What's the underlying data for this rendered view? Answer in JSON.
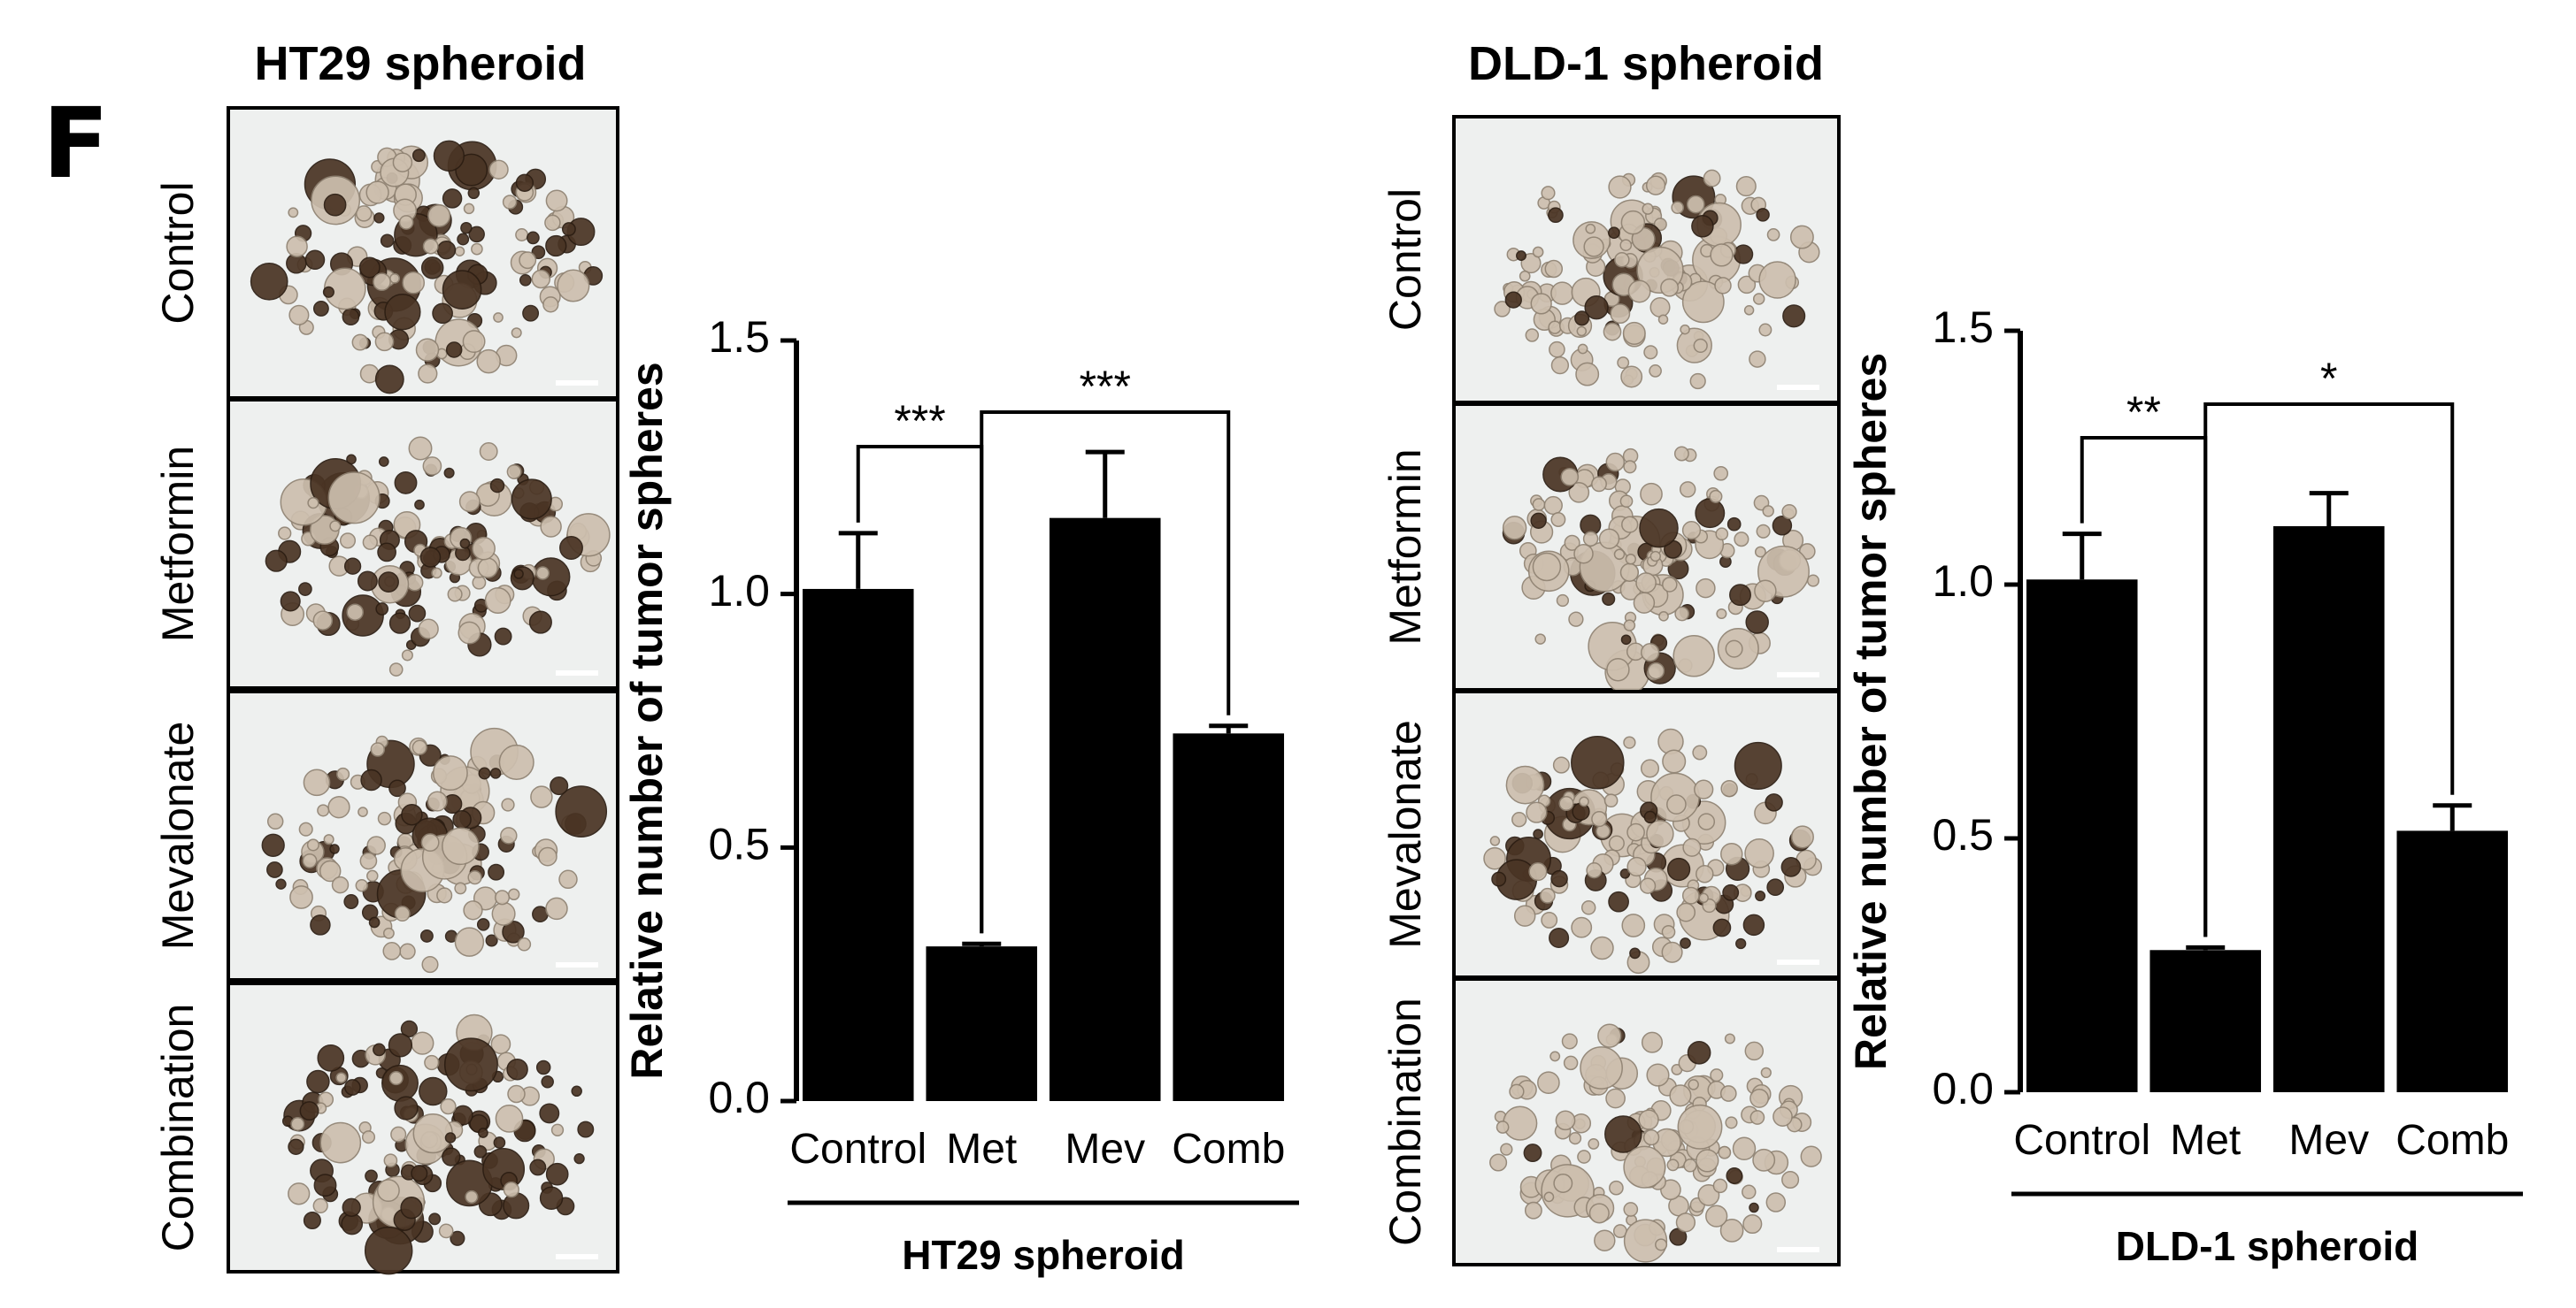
{
  "panel_letter": "F",
  "left": {
    "title": "HT29 spheroid",
    "row_labels": [
      "Control",
      "Metformin",
      "Mevalonate",
      "Combination"
    ]
  },
  "right": {
    "title": "DLD-1 spheroid",
    "row_labels": [
      "Control",
      "Metformin",
      "Mevalonate",
      "Combination"
    ]
  },
  "colors": {
    "bar": "#000000",
    "axis": "#000000",
    "micro_bg": "#eef0ef",
    "spheroid_dark": "#4a3424",
    "spheroid_light": "#cdbfae"
  },
  "chart_data": [
    {
      "type": "bar",
      "title": "",
      "ylabel": "Relative number of tumor spheres",
      "xlabel": "HT29 spheroid",
      "categories": [
        "Control",
        "Met",
        "Mev",
        "Comb"
      ],
      "values": [
        1.01,
        0.305,
        1.15,
        0.725
      ],
      "errors": [
        0.11,
        0.005,
        0.13,
        0.015
      ],
      "ylim": [
        0,
        1.5
      ],
      "yticks": [
        "0.0",
        "0.5",
        "1.0",
        "1.5"
      ],
      "significance": [
        {
          "from": 0,
          "to": 1,
          "label": "***"
        },
        {
          "from": 1,
          "to": 3,
          "label": "***"
        }
      ]
    },
    {
      "type": "bar",
      "title": "",
      "ylabel": "Relative number of tumor spheres",
      "xlabel": "DLD-1 spheroid",
      "categories": [
        "Control",
        "Met",
        "Mev",
        "Comb"
      ],
      "values": [
        1.01,
        0.28,
        1.115,
        0.515
      ],
      "errors": [
        0.09,
        0.005,
        0.065,
        0.05
      ],
      "ylim": [
        0,
        1.5
      ],
      "yticks": [
        "0.0",
        "0.5",
        "1.0",
        "1.5"
      ],
      "significance": [
        {
          "from": 0,
          "to": 1,
          "label": "**"
        },
        {
          "from": 1,
          "to": 3,
          "label": "*"
        }
      ]
    }
  ]
}
